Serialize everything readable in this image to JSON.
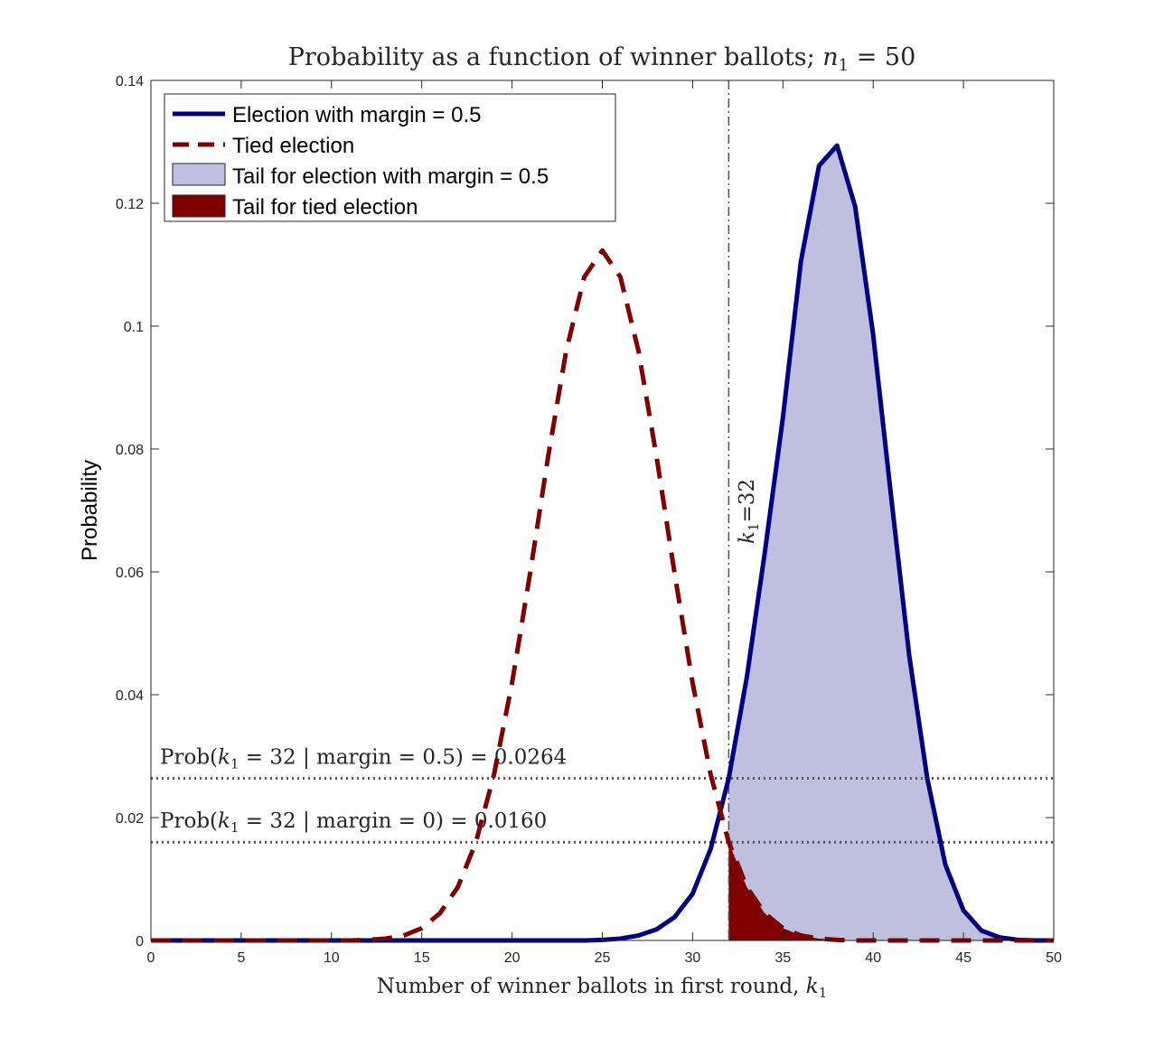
{
  "chart_data": {
    "type": "line",
    "title_prefix": "Probability as a function of winner ballots; ",
    "title_var": "n",
    "title_var_sub": "1",
    "title_suffix": " = 50",
    "xlabel_prefix": "Number of winner ballots in first round, ",
    "xlabel_var": "k",
    "xlabel_var_sub": "1",
    "ylabel": "Probability",
    "xlim": [
      0,
      50
    ],
    "ylim": [
      0,
      0.14
    ],
    "x_ticks": [
      0,
      5,
      10,
      15,
      20,
      25,
      30,
      35,
      40,
      45,
      50
    ],
    "x_tick_labels": [
      "0",
      "5",
      "10",
      "15",
      "20",
      "25",
      "30",
      "35",
      "40",
      "45",
      "50"
    ],
    "y_ticks": [
      0,
      0.02,
      0.04,
      0.06,
      0.08,
      0.1,
      0.12,
      0.14
    ],
    "y_tick_labels": [
      "0",
      "0.02",
      "0.04",
      "0.06",
      "0.08",
      "0.1",
      "0.12",
      "0.14"
    ],
    "x": [
      0,
      1,
      2,
      3,
      4,
      5,
      6,
      7,
      8,
      9,
      10,
      11,
      12,
      13,
      14,
      15,
      16,
      17,
      18,
      19,
      20,
      21,
      22,
      23,
      24,
      25,
      26,
      27,
      28,
      29,
      30,
      31,
      32,
      33,
      34,
      35,
      36,
      37,
      38,
      39,
      40,
      41,
      42,
      43,
      44,
      45,
      46,
      47,
      48,
      49,
      50
    ],
    "series": [
      {
        "name": "Election with margin = 0.5",
        "style": "solid",
        "color": "#000080",
        "values": [
          0,
          0,
          0,
          0,
          0,
          0,
          0,
          0,
          0,
          0,
          0,
          0,
          0,
          0,
          0,
          0,
          0,
          0,
          0,
          0,
          0,
          0,
          0,
          0,
          0,
          0.0001,
          0.0003,
          0.0008,
          0.0018,
          0.0038,
          0.0076,
          0.0149,
          0.0264,
          0.0428,
          0.0632,
          0.0851,
          0.1106,
          0.1261,
          0.1294,
          0.1195,
          0.0986,
          0.0721,
          0.0463,
          0.0263,
          0.0123,
          0.0049,
          0.0016,
          0.0005,
          0.0001,
          0,
          0
        ]
      },
      {
        "name": "Tied election",
        "style": "dashed",
        "color": "#800000",
        "values": [
          0,
          0,
          0,
          0,
          0,
          0,
          0,
          0,
          0,
          0,
          0,
          0,
          0.0001,
          0.0003,
          0.0008,
          0.002,
          0.0044,
          0.0087,
          0.016,
          0.027,
          0.0419,
          0.0598,
          0.0788,
          0.096,
          0.108,
          0.1123,
          0.108,
          0.096,
          0.0788,
          0.0598,
          0.0419,
          0.027,
          0.016,
          0.0087,
          0.0044,
          0.002,
          0.0008,
          0.0003,
          0.0001,
          0,
          0,
          0,
          0,
          0,
          0,
          0,
          0,
          0,
          0,
          0,
          0
        ]
      }
    ],
    "fills": [
      {
        "name": "Tail for election with margin = 0.5",
        "series_index": 0,
        "from_x": 32,
        "color": "#bfbfe0"
      },
      {
        "name": "Tail for tied election",
        "series_index": 1,
        "from_x": 32,
        "color": "#800000"
      }
    ],
    "threshold_x": 32,
    "threshold_label_var": "k",
    "threshold_label_sub": "1",
    "threshold_label_suffix": "=32",
    "hlines": [
      {
        "y": 0.0264,
        "label_prefix": "Prob(",
        "label_var": "k",
        "label_sub": "1",
        "label_suffix": " = 32 | margin = 0.5) = 0.0264"
      },
      {
        "y": 0.016,
        "label_prefix": "Prob(",
        "label_var": "k",
        "label_sub": "1",
        "label_suffix": " = 32 | margin = 0) = 0.0160"
      }
    ],
    "legend_position": "top-left",
    "grid": false
  }
}
